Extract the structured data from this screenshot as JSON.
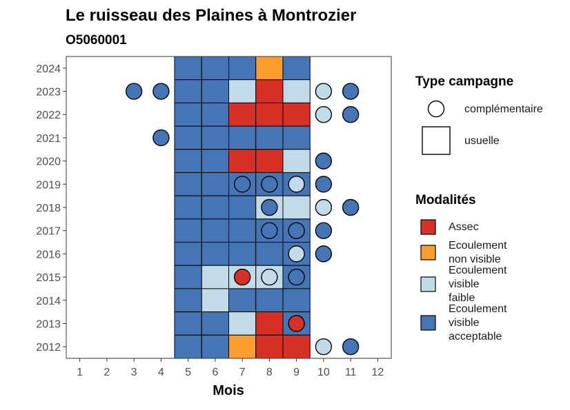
{
  "chart_data": {
    "type": "heatmap",
    "title": "Le ruisseau des Plaines à Montrozier",
    "subtitle": "O5060001",
    "xlabel": "Mois",
    "ylabel": "",
    "x_ticks": [
      "1",
      "2",
      "3",
      "4",
      "5",
      "6",
      "7",
      "8",
      "9",
      "10",
      "11",
      "12"
    ],
    "y_ticks": [
      "2012",
      "2013",
      "2014",
      "2015",
      "2016",
      "2017",
      "2018",
      "2019",
      "2020",
      "2021",
      "2022",
      "2023",
      "2024"
    ],
    "xlim": [
      0.5,
      12.5
    ],
    "ylim": [
      2011.5,
      2024.5
    ],
    "grid": false,
    "legend_position": "right",
    "legend_shape": {
      "title": "Type campagne",
      "items": [
        {
          "key": "complementaire",
          "label": "complémentaire",
          "shape": "circle"
        },
        {
          "key": "usuelle",
          "label": "usuelle",
          "shape": "square"
        }
      ]
    },
    "legend_fill": {
      "title": "Modalités",
      "items": [
        {
          "key": "assec",
          "label_lines": [
            "Assec"
          ],
          "color": "#d73027"
        },
        {
          "key": "non_visible",
          "label_lines": [
            "Ecoulement",
            "non visible"
          ],
          "color": "#fc9d30"
        },
        {
          "key": "faible",
          "label_lines": [
            "Ecoulement",
            "visible",
            "faible"
          ],
          "color": "#c2dbe9"
        },
        {
          "key": "acceptable",
          "label_lines": [
            "Ecoulement",
            "visible",
            "acceptable"
          ],
          "color": "#4575b4"
        }
      ]
    },
    "colors": {
      "assec": "#d73027",
      "non_visible": "#fc9d30",
      "faible": "#c2dbe9",
      "acceptable": "#4575b4"
    },
    "usuelle": [
      {
        "year": 2024,
        "month": 5,
        "v": "acceptable"
      },
      {
        "year": 2024,
        "month": 6,
        "v": "acceptable"
      },
      {
        "year": 2024,
        "month": 7,
        "v": "acceptable"
      },
      {
        "year": 2024,
        "month": 8,
        "v": "non_visible"
      },
      {
        "year": 2024,
        "month": 9,
        "v": "acceptable"
      },
      {
        "year": 2023,
        "month": 5,
        "v": "acceptable"
      },
      {
        "year": 2023,
        "month": 6,
        "v": "acceptable"
      },
      {
        "year": 2023,
        "month": 7,
        "v": "faible"
      },
      {
        "year": 2023,
        "month": 8,
        "v": "assec"
      },
      {
        "year": 2023,
        "month": 9,
        "v": "faible"
      },
      {
        "year": 2022,
        "month": 5,
        "v": "acceptable"
      },
      {
        "year": 2022,
        "month": 6,
        "v": "acceptable"
      },
      {
        "year": 2022,
        "month": 7,
        "v": "assec"
      },
      {
        "year": 2022,
        "month": 8,
        "v": "assec"
      },
      {
        "year": 2022,
        "month": 9,
        "v": "assec"
      },
      {
        "year": 2021,
        "month": 5,
        "v": "acceptable"
      },
      {
        "year": 2021,
        "month": 6,
        "v": "acceptable"
      },
      {
        "year": 2021,
        "month": 7,
        "v": "acceptable"
      },
      {
        "year": 2021,
        "month": 8,
        "v": "acceptable"
      },
      {
        "year": 2021,
        "month": 9,
        "v": "acceptable"
      },
      {
        "year": 2020,
        "month": 5,
        "v": "acceptable"
      },
      {
        "year": 2020,
        "month": 6,
        "v": "acceptable"
      },
      {
        "year": 2020,
        "month": 7,
        "v": "assec"
      },
      {
        "year": 2020,
        "month": 8,
        "v": "assec"
      },
      {
        "year": 2020,
        "month": 9,
        "v": "faible"
      },
      {
        "year": 2019,
        "month": 5,
        "v": "acceptable"
      },
      {
        "year": 2019,
        "month": 6,
        "v": "acceptable"
      },
      {
        "year": 2019,
        "month": 7,
        "v": "acceptable"
      },
      {
        "year": 2019,
        "month": 8,
        "v": "acceptable"
      },
      {
        "year": 2019,
        "month": 9,
        "v": "acceptable"
      },
      {
        "year": 2018,
        "month": 5,
        "v": "acceptable"
      },
      {
        "year": 2018,
        "month": 6,
        "v": "acceptable"
      },
      {
        "year": 2018,
        "month": 7,
        "v": "acceptable"
      },
      {
        "year": 2018,
        "month": 8,
        "v": "faible"
      },
      {
        "year": 2018,
        "month": 9,
        "v": "faible"
      },
      {
        "year": 2017,
        "month": 5,
        "v": "acceptable"
      },
      {
        "year": 2017,
        "month": 6,
        "v": "acceptable"
      },
      {
        "year": 2017,
        "month": 7,
        "v": "acceptable"
      },
      {
        "year": 2017,
        "month": 8,
        "v": "acceptable"
      },
      {
        "year": 2017,
        "month": 9,
        "v": "acceptable"
      },
      {
        "year": 2016,
        "month": 5,
        "v": "acceptable"
      },
      {
        "year": 2016,
        "month": 6,
        "v": "acceptable"
      },
      {
        "year": 2016,
        "month": 7,
        "v": "acceptable"
      },
      {
        "year": 2016,
        "month": 8,
        "v": "acceptable"
      },
      {
        "year": 2016,
        "month": 9,
        "v": "acceptable"
      },
      {
        "year": 2015,
        "month": 5,
        "v": "acceptable"
      },
      {
        "year": 2015,
        "month": 6,
        "v": "faible"
      },
      {
        "year": 2015,
        "month": 7,
        "v": "faible"
      },
      {
        "year": 2015,
        "month": 8,
        "v": "faible"
      },
      {
        "year": 2015,
        "month": 9,
        "v": "acceptable"
      },
      {
        "year": 2014,
        "month": 5,
        "v": "acceptable"
      },
      {
        "year": 2014,
        "month": 6,
        "v": "faible"
      },
      {
        "year": 2014,
        "month": 7,
        "v": "acceptable"
      },
      {
        "year": 2014,
        "month": 8,
        "v": "acceptable"
      },
      {
        "year": 2014,
        "month": 9,
        "v": "acceptable"
      },
      {
        "year": 2013,
        "month": 5,
        "v": "acceptable"
      },
      {
        "year": 2013,
        "month": 6,
        "v": "acceptable"
      },
      {
        "year": 2013,
        "month": 7,
        "v": "faible"
      },
      {
        "year": 2013,
        "month": 8,
        "v": "assec"
      },
      {
        "year": 2013,
        "month": 9,
        "v": "acceptable"
      },
      {
        "year": 2012,
        "month": 5,
        "v": "acceptable"
      },
      {
        "year": 2012,
        "month": 6,
        "v": "acceptable"
      },
      {
        "year": 2012,
        "month": 7,
        "v": "non_visible"
      },
      {
        "year": 2012,
        "month": 8,
        "v": "assec"
      },
      {
        "year": 2012,
        "month": 9,
        "v": "assec"
      }
    ],
    "complementaire": [
      {
        "year": 2023,
        "month": 3,
        "v": "acceptable"
      },
      {
        "year": 2023,
        "month": 4,
        "v": "acceptable"
      },
      {
        "year": 2023,
        "month": 10,
        "v": "faible"
      },
      {
        "year": 2023,
        "month": 11,
        "v": "acceptable"
      },
      {
        "year": 2022,
        "month": 10,
        "v": "faible"
      },
      {
        "year": 2022,
        "month": 11,
        "v": "acceptable"
      },
      {
        "year": 2021,
        "month": 4,
        "v": "acceptable"
      },
      {
        "year": 2020,
        "month": 10,
        "v": "acceptable"
      },
      {
        "year": 2019,
        "month": 7,
        "v": "acceptable"
      },
      {
        "year": 2019,
        "month": 8,
        "v": "acceptable"
      },
      {
        "year": 2019,
        "month": 9,
        "v": "faible"
      },
      {
        "year": 2019,
        "month": 10,
        "v": "acceptable"
      },
      {
        "year": 2018,
        "month": 8,
        "v": "acceptable"
      },
      {
        "year": 2018,
        "month": 10,
        "v": "faible"
      },
      {
        "year": 2018,
        "month": 11,
        "v": "acceptable"
      },
      {
        "year": 2017,
        "month": 8,
        "v": "acceptable"
      },
      {
        "year": 2017,
        "month": 9,
        "v": "acceptable"
      },
      {
        "year": 2017,
        "month": 10,
        "v": "acceptable"
      },
      {
        "year": 2016,
        "month": 9,
        "v": "faible"
      },
      {
        "year": 2016,
        "month": 10,
        "v": "acceptable"
      },
      {
        "year": 2015,
        "month": 7,
        "v": "assec"
      },
      {
        "year": 2015,
        "month": 8,
        "v": "faible"
      },
      {
        "year": 2015,
        "month": 9,
        "v": "acceptable"
      },
      {
        "year": 2013,
        "month": 9,
        "v": "assec"
      },
      {
        "year": 2012,
        "month": 10,
        "v": "faible"
      },
      {
        "year": 2012,
        "month": 11,
        "v": "acceptable"
      }
    ]
  }
}
